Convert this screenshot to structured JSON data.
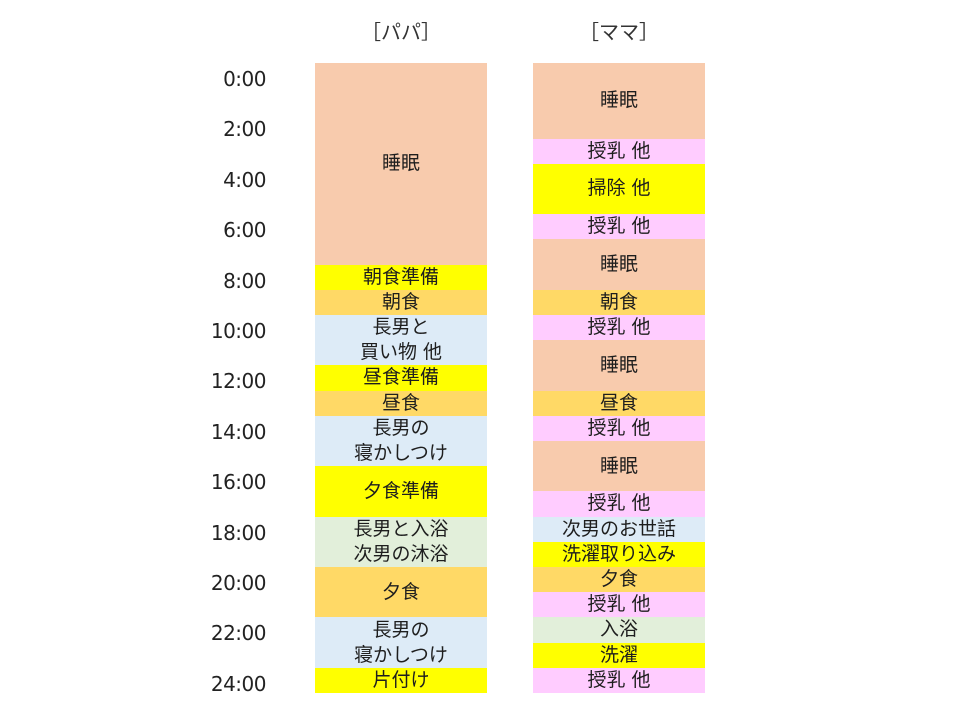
{
  "headers": {
    "papa": "［パパ］",
    "mama": "［ママ］"
  },
  "time_labels": [
    "0:00",
    "2:00",
    "4:00",
    "6:00",
    "8:00",
    "10:00",
    "12:00",
    "14:00",
    "16:00",
    "18:00",
    "20:00",
    "22:00",
    "24:00"
  ],
  "colors": {
    "sleep": "#f8cbad",
    "prep": "#ffff00",
    "meal": "#ffd966",
    "child": "#ddebf7",
    "bath": "#e2efda",
    "nursing": "#ffccff"
  },
  "papa_blocks": [
    {
      "label": "睡眠",
      "start": 0,
      "end": 8,
      "kind": "sleep"
    },
    {
      "label": "朝食準備",
      "start": 8,
      "end": 9,
      "kind": "prep"
    },
    {
      "label": "朝食",
      "start": 9,
      "end": 10,
      "kind": "meal"
    },
    {
      "label": "長男と\n買い物 他",
      "start": 10,
      "end": 12,
      "kind": "child"
    },
    {
      "label": "昼食準備",
      "start": 12,
      "end": 13,
      "kind": "prep"
    },
    {
      "label": "昼食",
      "start": 13,
      "end": 14,
      "kind": "meal"
    },
    {
      "label": "長男の\n寝かしつけ",
      "start": 14,
      "end": 16,
      "kind": "child"
    },
    {
      "label": "夕食準備",
      "start": 16,
      "end": 18,
      "kind": "prep"
    },
    {
      "label": "長男と入浴\n次男の沐浴",
      "start": 18,
      "end": 20,
      "kind": "bath"
    },
    {
      "label": "夕食",
      "start": 20,
      "end": 22,
      "kind": "meal"
    },
    {
      "label": "長男の\n寝かしつけ",
      "start": 22,
      "end": 24,
      "kind": "child"
    },
    {
      "label": "片付け",
      "start": 24,
      "end": 25,
      "kind": "prep"
    }
  ],
  "mama_blocks": [
    {
      "label": "睡眠",
      "start": 0,
      "end": 3,
      "kind": "sleep"
    },
    {
      "label": "授乳 他",
      "start": 3,
      "end": 4,
      "kind": "nursing"
    },
    {
      "label": "掃除 他",
      "start": 4,
      "end": 6,
      "kind": "prep"
    },
    {
      "label": "授乳 他",
      "start": 6,
      "end": 7,
      "kind": "nursing"
    },
    {
      "label": "睡眠",
      "start": 7,
      "end": 9,
      "kind": "sleep"
    },
    {
      "label": "朝食",
      "start": 9,
      "end": 10,
      "kind": "meal"
    },
    {
      "label": "授乳 他",
      "start": 10,
      "end": 11,
      "kind": "nursing"
    },
    {
      "label": "睡眠",
      "start": 11,
      "end": 13,
      "kind": "sleep"
    },
    {
      "label": "昼食",
      "start": 13,
      "end": 14,
      "kind": "meal"
    },
    {
      "label": "授乳 他",
      "start": 14,
      "end": 15,
      "kind": "nursing"
    },
    {
      "label": "睡眠",
      "start": 15,
      "end": 17,
      "kind": "sleep"
    },
    {
      "label": "授乳 他",
      "start": 17,
      "end": 18,
      "kind": "nursing"
    },
    {
      "label": "次男のお世話",
      "start": 18,
      "end": 19,
      "kind": "child"
    },
    {
      "label": "洗濯取り込み",
      "start": 19,
      "end": 20,
      "kind": "prep"
    },
    {
      "label": "夕食",
      "start": 20,
      "end": 21,
      "kind": "meal"
    },
    {
      "label": "授乳 他",
      "start": 21,
      "end": 22,
      "kind": "nursing"
    },
    {
      "label": "入浴",
      "start": 22,
      "end": 23,
      "kind": "bath"
    },
    {
      "label": "洗濯",
      "start": 23,
      "end": 24,
      "kind": "prep"
    },
    {
      "label": "授乳 他",
      "start": 24,
      "end": 25,
      "kind": "nursing"
    }
  ]
}
